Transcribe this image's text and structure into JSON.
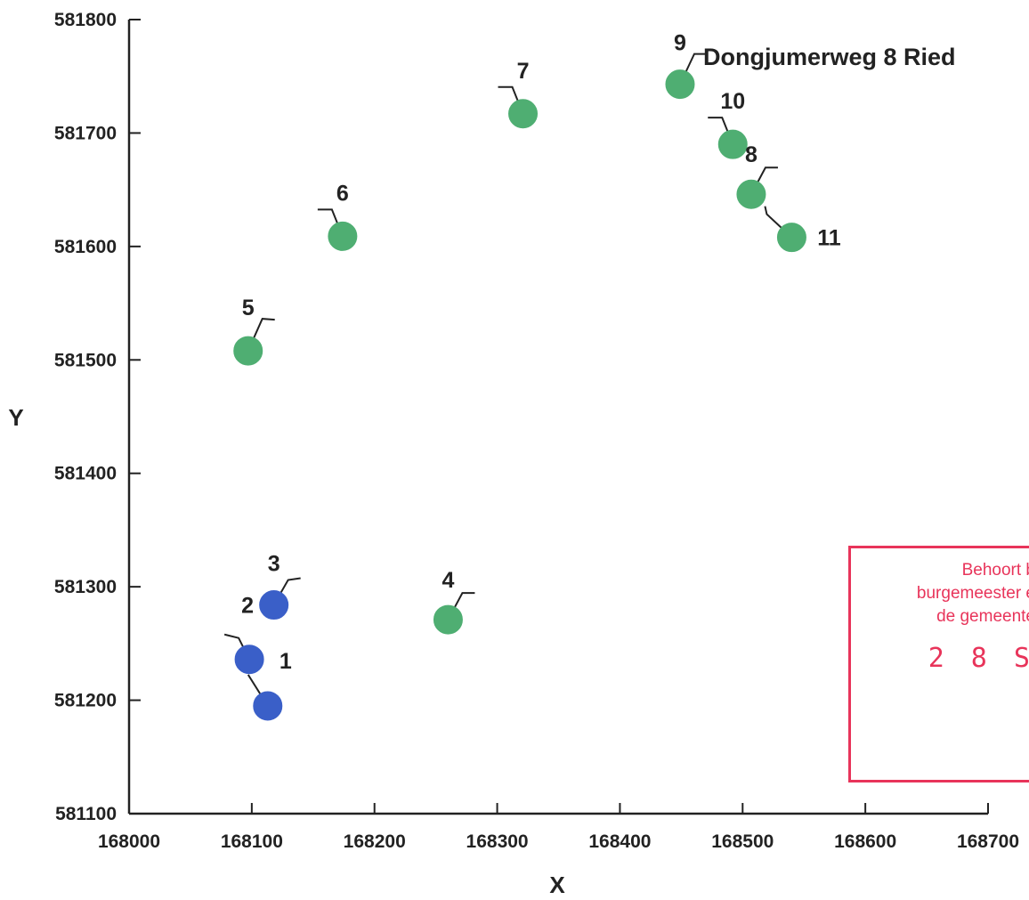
{
  "chart_data": {
    "type": "scatter",
    "title": "",
    "xlabel": "X",
    "ylabel": "Y",
    "xlim": [
      168000,
      168700
    ],
    "ylim": [
      581100,
      581800
    ],
    "xticks": [
      "168000",
      "168100",
      "168200",
      "168300",
      "168400",
      "168500",
      "168600",
      "168700"
    ],
    "yticks": [
      "581100",
      "581200",
      "581300",
      "581400",
      "581500",
      "581600",
      "581700",
      "581800"
    ],
    "annotation": "Dongjumerweg 8 Ried",
    "grid": false,
    "series": [
      {
        "color": "#3a5fc8",
        "points": [
          {
            "label": "1",
            "x": 168113,
            "y": 581195
          },
          {
            "label": "2",
            "x": 168098,
            "y": 581236
          },
          {
            "label": "3",
            "x": 168118,
            "y": 581284
          }
        ]
      },
      {
        "color": "#4fae72",
        "points": [
          {
            "label": "4",
            "x": 168260,
            "y": 581271
          },
          {
            "label": "5",
            "x": 168097,
            "y": 581508
          },
          {
            "label": "6",
            "x": 168174,
            "y": 581609
          },
          {
            "label": "7",
            "x": 168321,
            "y": 581717
          },
          {
            "label": "8",
            "x": 168507,
            "y": 581646
          },
          {
            "label": "9",
            "x": 168449,
            "y": 581743
          },
          {
            "label": "10",
            "x": 168492,
            "y": 581690
          },
          {
            "label": "11",
            "x": 168540,
            "y": 581608
          }
        ]
      }
    ]
  },
  "stamp": {
    "line1": "Behoort b",
    "line2": "burgemeester e",
    "line3": "de gemeente",
    "date": "2 8 S",
    "color": "#e8345a"
  }
}
